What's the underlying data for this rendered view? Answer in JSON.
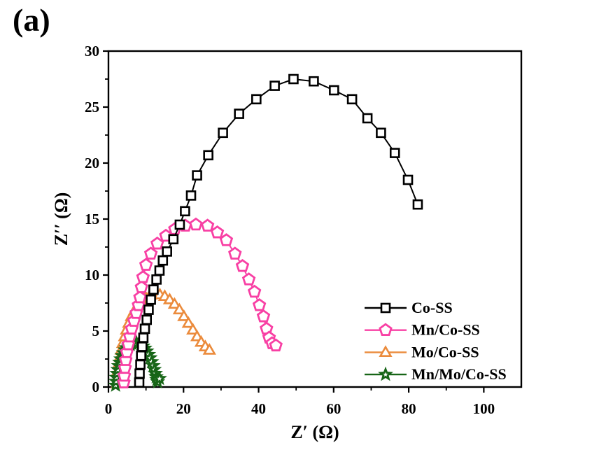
{
  "panel_label": "(a)",
  "chart_data": {
    "type": "scatter",
    "title": "",
    "xlabel": "Z′ (Ω)",
    "ylabel": "Z′′ (Ω)",
    "xlim": [
      0,
      110
    ],
    "ylim": [
      0,
      30
    ],
    "x_major_ticks": [
      0,
      20,
      40,
      60,
      80,
      100
    ],
    "x_minor_ticks": [
      10,
      30,
      50,
      70,
      90
    ],
    "y_major_ticks": [
      0,
      5,
      10,
      15,
      20,
      25,
      30
    ],
    "y_minor_ticks": [
      2.5,
      7.5,
      12.5,
      17.5,
      22.5,
      27.5
    ],
    "grid": false,
    "legend_position": "inside lower right",
    "z_order": [
      2,
      3,
      1,
      0
    ],
    "series": [
      {
        "name": "Co-SS",
        "marker": "square",
        "color": "#000000",
        "points": [
          [
            8.2,
            0.4
          ],
          [
            8.3,
            1.2
          ],
          [
            8.5,
            2.0
          ],
          [
            8.7,
            2.8
          ],
          [
            9.0,
            3.6
          ],
          [
            9.3,
            4.4
          ],
          [
            9.7,
            5.2
          ],
          [
            10.2,
            6.0
          ],
          [
            10.7,
            6.9
          ],
          [
            11.3,
            7.8
          ],
          [
            12.0,
            8.7
          ],
          [
            12.8,
            9.6
          ],
          [
            13.6,
            10.4
          ],
          [
            14.5,
            11.3
          ],
          [
            15.6,
            12.1
          ],
          [
            17.3,
            13.2
          ],
          [
            19.0,
            14.5
          ],
          [
            20.4,
            15.7
          ],
          [
            22.0,
            17.1
          ],
          [
            23.6,
            18.9
          ],
          [
            26.6,
            20.7
          ],
          [
            30.5,
            22.7
          ],
          [
            34.8,
            24.4
          ],
          [
            39.4,
            25.7
          ],
          [
            44.3,
            26.9
          ],
          [
            49.3,
            27.5
          ],
          [
            54.7,
            27.3
          ],
          [
            60.1,
            26.5
          ],
          [
            64.9,
            25.7
          ],
          [
            69.0,
            24.0
          ],
          [
            72.6,
            22.7
          ],
          [
            76.3,
            20.9
          ],
          [
            79.8,
            18.5
          ],
          [
            82.4,
            16.3
          ]
        ]
      },
      {
        "name": "Mn/Co-SS",
        "marker": "pentagon",
        "color": "#F840A4",
        "points": [
          [
            4.1,
            0.4
          ],
          [
            4.2,
            1.0
          ],
          [
            4.4,
            1.7
          ],
          [
            4.6,
            2.4
          ],
          [
            4.9,
            3.1
          ],
          [
            5.3,
            3.8
          ],
          [
            5.7,
            4.5
          ],
          [
            6.2,
            5.2
          ],
          [
            6.8,
            5.9
          ],
          [
            7.4,
            6.6
          ],
          [
            8.0,
            7.3
          ],
          [
            8.4,
            8.0
          ],
          [
            8.8,
            8.9
          ],
          [
            9.2,
            9.8
          ],
          [
            10.0,
            10.9
          ],
          [
            11.3,
            11.9
          ],
          [
            13.0,
            12.8
          ],
          [
            15.3,
            13.5
          ],
          [
            17.7,
            14.1
          ],
          [
            20.5,
            14.4
          ],
          [
            23.3,
            14.5
          ],
          [
            26.4,
            14.4
          ],
          [
            29.0,
            13.8
          ],
          [
            31.4,
            13.1
          ],
          [
            33.7,
            11.9
          ],
          [
            35.7,
            10.8
          ],
          [
            37.4,
            9.6
          ],
          [
            38.9,
            8.5
          ],
          [
            40.2,
            7.3
          ],
          [
            41.3,
            6.3
          ],
          [
            42.1,
            5.2
          ],
          [
            42.8,
            4.4
          ],
          [
            43.6,
            3.9
          ],
          [
            44.6,
            3.7
          ]
        ]
      },
      {
        "name": "Mo/Co-SS",
        "marker": "triangle",
        "color": "#EB8B3C",
        "points": [
          [
            2.3,
            0.3
          ],
          [
            2.4,
            0.9
          ],
          [
            2.6,
            1.5
          ],
          [
            2.8,
            2.1
          ],
          [
            3.1,
            2.7
          ],
          [
            3.4,
            3.3
          ],
          [
            3.8,
            3.9
          ],
          [
            4.3,
            4.5
          ],
          [
            4.8,
            5.1
          ],
          [
            5.4,
            5.7
          ],
          [
            6.1,
            6.3
          ],
          [
            6.9,
            6.8
          ],
          [
            7.8,
            7.3
          ],
          [
            8.8,
            7.7
          ],
          [
            9.9,
            8.0
          ],
          [
            11.1,
            8.2
          ],
          [
            12.4,
            8.3
          ],
          [
            13.7,
            8.25
          ],
          [
            15.0,
            8.1
          ],
          [
            16.3,
            7.8
          ],
          [
            17.6,
            7.4
          ],
          [
            18.9,
            6.9
          ],
          [
            20.1,
            6.3
          ],
          [
            21.3,
            5.7
          ],
          [
            22.5,
            5.1
          ],
          [
            23.6,
            4.5
          ],
          [
            24.7,
            4.0
          ],
          [
            25.8,
            3.6
          ],
          [
            26.9,
            3.3
          ]
        ]
      },
      {
        "name": "Mn/Mo/Co-SS",
        "marker": "star",
        "color": "#176517",
        "points": [
          [
            1.9,
            0.15
          ],
          [
            2.0,
            0.5
          ],
          [
            2.1,
            0.85
          ],
          [
            2.3,
            1.2
          ],
          [
            2.5,
            1.55
          ],
          [
            2.7,
            1.9
          ],
          [
            3.0,
            2.2
          ],
          [
            3.3,
            2.5
          ],
          [
            3.6,
            2.8
          ],
          [
            4.0,
            3.05
          ],
          [
            4.4,
            3.3
          ],
          [
            4.8,
            3.5
          ],
          [
            5.3,
            3.65
          ],
          [
            5.8,
            3.78
          ],
          [
            6.3,
            3.87
          ],
          [
            6.9,
            3.92
          ],
          [
            7.5,
            3.93
          ],
          [
            8.1,
            3.9
          ],
          [
            8.7,
            3.8
          ],
          [
            9.2,
            3.65
          ],
          [
            9.7,
            3.45
          ],
          [
            10.2,
            3.2
          ],
          [
            10.7,
            2.9
          ],
          [
            11.1,
            2.6
          ],
          [
            11.5,
            2.25
          ],
          [
            11.9,
            1.9
          ],
          [
            12.2,
            1.55
          ],
          [
            12.5,
            1.2
          ],
          [
            12.7,
            0.9
          ],
          [
            12.9,
            0.65
          ],
          [
            13.1,
            0.45
          ],
          [
            13.6,
            0.75
          ]
        ]
      }
    ]
  }
}
